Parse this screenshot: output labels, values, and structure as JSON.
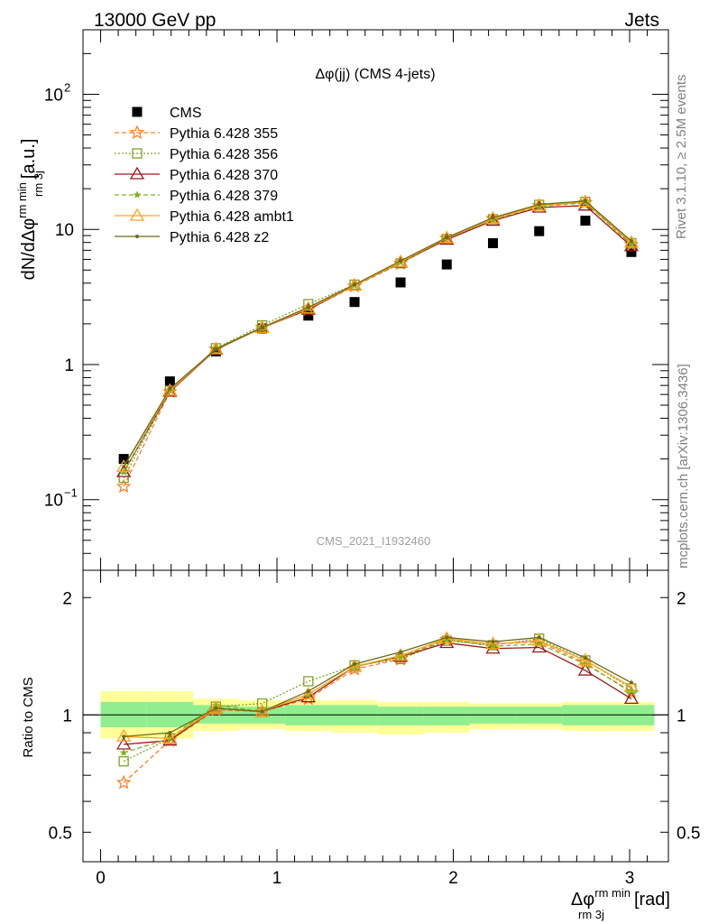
{
  "header": {
    "left": "13000 GeV pp",
    "right": "Jets"
  },
  "side_labels": {
    "rivet": "Rivet 3.1.10, ≥ 2.5M events",
    "mcplots": "mcplots.cern.ch [arXiv:1306.3436]"
  },
  "chart_data": [
    {
      "type": "scatter",
      "title": "Δφ(jj) (CMS 4-jets)",
      "watermark": "CMS_2021_I1932460",
      "ylabel_text": "dN/dΔφ",
      "ylabel_sup": "rm min",
      "ylabel_sub": "rm 3j",
      "ylabel_units": "[a.u.]",
      "yscale": "log",
      "ylim": [
        0.03,
        300
      ],
      "xlim": [
        -0.1,
        3.22
      ],
      "x_ticks": [
        0,
        1,
        2,
        3
      ],
      "y_ticks": [
        {
          "v": 0.1,
          "label": "10",
          "sup": "−1"
        },
        {
          "v": 1,
          "label": "1",
          "sup": ""
        },
        {
          "v": 10,
          "label": "10",
          "sup": ""
        },
        {
          "v": 100,
          "label": "10",
          "sup": "2"
        }
      ],
      "x": [
        0.131,
        0.393,
        0.654,
        0.916,
        1.178,
        1.44,
        1.701,
        1.963,
        2.225,
        2.487,
        2.749,
        3.01
      ],
      "series": [
        {
          "name": "CMS",
          "color": "#000000",
          "marker": "square",
          "line": "none",
          "values": [
            0.2,
            0.75,
            1.25,
            1.85,
            2.3,
            2.9,
            4.05,
            5.5,
            7.9,
            9.7,
            11.6,
            6.8
          ]
        },
        {
          "name": "Pythia 6.428 355",
          "color": "#ff7f27",
          "marker": "star",
          "line": "dashed",
          "values": [
            0.125,
            0.63,
            1.3,
            1.88,
            2.55,
            3.8,
            5.6,
            8.6,
            12.0,
            15.0,
            15.8,
            7.7
          ]
        },
        {
          "name": "Pythia 6.428 356",
          "color": "#7da329",
          "marker": "open-square",
          "line": "dotted",
          "values": [
            0.145,
            0.64,
            1.32,
            1.95,
            2.8,
            3.9,
            5.6,
            8.5,
            11.9,
            15.2,
            16.0,
            7.9
          ]
        },
        {
          "name": "Pythia 6.428 370",
          "color": "#991a1a",
          "marker": "open-triangle",
          "line": "solid",
          "values": [
            0.16,
            0.63,
            1.29,
            1.87,
            2.55,
            3.85,
            5.7,
            8.4,
            11.6,
            14.5,
            15.0,
            7.5
          ]
        },
        {
          "name": "Pythia 6.428 379",
          "color": "#7fb31a",
          "marker": "star-small",
          "line": "dashed",
          "values": [
            0.16,
            0.64,
            1.32,
            1.88,
            2.6,
            3.85,
            5.7,
            8.6,
            11.8,
            14.8,
            15.7,
            7.8
          ]
        },
        {
          "name": "Pythia 6.428 ambt1",
          "color": "#ffa31a",
          "marker": "open-triangle",
          "line": "solid",
          "values": [
            0.175,
            0.64,
            1.3,
            1.87,
            2.6,
            3.85,
            5.75,
            8.6,
            12.0,
            15.0,
            16.0,
            8.0
          ]
        },
        {
          "name": "Pythia 6.428 z2",
          "color": "#6b6b1a",
          "marker": "dot",
          "line": "solid",
          "values": [
            0.175,
            0.66,
            1.3,
            1.88,
            2.65,
            3.9,
            5.85,
            8.7,
            12.2,
            15.3,
            16.2,
            8.2
          ]
        }
      ]
    },
    {
      "type": "scatter",
      "ylabel": "Ratio to CMS",
      "yscale": "log",
      "ylim": [
        0.42,
        2.35
      ],
      "xlim": [
        -0.1,
        3.22
      ],
      "x_ticks": [
        0,
        1,
        2,
        3
      ],
      "y_ticks": [
        {
          "v": 0.5,
          "label": "0.5"
        },
        {
          "v": 1,
          "label": "1"
        },
        {
          "v": 2,
          "label": "2"
        }
      ],
      "xlabel_text": "Δφ",
      "xlabel_sup": "rm min",
      "xlabel_sub": "rm 3j",
      "xlabel_units": "[rad]",
      "band_x_edges": [
        0.0,
        0.262,
        0.524,
        0.785,
        1.047,
        1.309,
        1.571,
        1.833,
        2.094,
        2.356,
        2.618,
        2.88,
        3.14
      ],
      "band_green": [
        [
          0.93,
          1.08
        ],
        [
          0.93,
          1.08
        ],
        [
          0.95,
          1.06
        ],
        [
          0.95,
          1.05
        ],
        [
          0.94,
          1.06
        ],
        [
          0.94,
          1.06
        ],
        [
          0.94,
          1.05
        ],
        [
          0.94,
          1.05
        ],
        [
          0.95,
          1.05
        ],
        [
          0.95,
          1.05
        ],
        [
          0.94,
          1.06
        ],
        [
          0.94,
          1.06
        ]
      ],
      "band_yellow": [
        [
          0.87,
          1.15
        ],
        [
          0.87,
          1.15
        ],
        [
          0.91,
          1.1
        ],
        [
          0.92,
          1.09
        ],
        [
          0.91,
          1.09
        ],
        [
          0.9,
          1.09
        ],
        [
          0.89,
          1.08
        ],
        [
          0.9,
          1.08
        ],
        [
          0.92,
          1.07
        ],
        [
          0.92,
          1.07
        ],
        [
          0.91,
          1.08
        ],
        [
          0.91,
          1.08
        ]
      ],
      "series": [
        {
          "name": "Pythia 6.428 355",
          "values": [
            0.67,
            0.86,
            1.03,
            1.02,
            1.1,
            1.31,
            1.39,
            1.56,
            1.52,
            1.54,
            1.36,
            1.14
          ]
        },
        {
          "name": "Pythia 6.428 356",
          "values": [
            0.76,
            0.87,
            1.05,
            1.07,
            1.22,
            1.34,
            1.39,
            1.55,
            1.51,
            1.57,
            1.38,
            1.17
          ]
        },
        {
          "name": "Pythia 6.428 370",
          "values": [
            0.84,
            0.86,
            1.04,
            1.02,
            1.11,
            1.33,
            1.41,
            1.53,
            1.48,
            1.49,
            1.3,
            1.1
          ]
        },
        {
          "name": "Pythia 6.428 379",
          "values": [
            0.8,
            0.87,
            1.06,
            1.02,
            1.13,
            1.33,
            1.41,
            1.56,
            1.5,
            1.52,
            1.35,
            1.15
          ]
        },
        {
          "name": "Pythia 6.428 ambt1",
          "values": [
            0.88,
            0.87,
            1.04,
            1.02,
            1.13,
            1.33,
            1.42,
            1.57,
            1.52,
            1.55,
            1.38,
            1.18
          ]
        },
        {
          "name": "Pythia 6.428 z2",
          "values": [
            0.88,
            0.9,
            1.04,
            1.02,
            1.15,
            1.35,
            1.45,
            1.58,
            1.54,
            1.58,
            1.4,
            1.21
          ]
        }
      ]
    }
  ]
}
